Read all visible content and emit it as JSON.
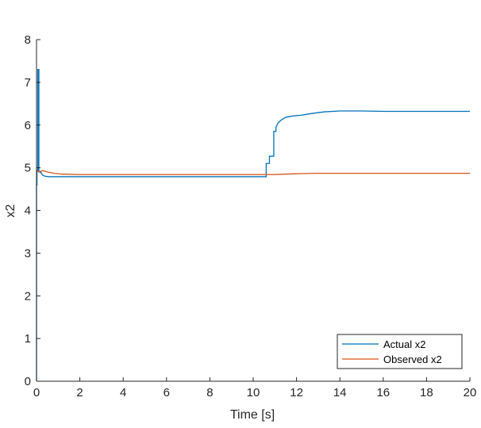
{
  "chart_data": {
    "type": "line",
    "title": "",
    "xlabel": "Time [s]",
    "ylabel": "x2",
    "xlim": [
      0,
      20
    ],
    "ylim": [
      0,
      8
    ],
    "xticks": [
      0,
      2,
      4,
      6,
      8,
      10,
      12,
      14,
      16,
      18,
      20
    ],
    "yticks": [
      0,
      1,
      2,
      3,
      4,
      5,
      6,
      7,
      8
    ],
    "grid": false,
    "legend_position": "bottom-right",
    "series": [
      {
        "name": "Actual x2",
        "color": "#0072BD",
        "x": [
          0,
          0,
          0.02,
          0.02,
          0.04,
          0.06,
          0.06,
          0.11,
          0.11,
          0.18,
          0.2,
          0.2,
          0.25,
          0.3,
          0.4,
          0.6,
          1.0,
          2.0,
          4.0,
          6.0,
          8.0,
          10.0,
          10.6,
          10.6,
          10.75,
          10.75,
          10.95,
          10.95,
          11.05,
          11.05,
          11.15,
          11.3,
          11.5,
          11.8,
          12.2,
          12.7,
          13.3,
          14.0,
          15.0,
          16.0,
          18.0,
          20.0
        ],
        "y": [
          0,
          4.6,
          4.6,
          4.95,
          4.95,
          4.95,
          7.3,
          7.3,
          4.9,
          4.9,
          4.9,
          4.88,
          4.85,
          4.82,
          4.8,
          4.79,
          4.79,
          4.79,
          4.79,
          4.79,
          4.79,
          4.79,
          4.79,
          5.1,
          5.1,
          5.27,
          5.27,
          5.85,
          5.85,
          5.95,
          6.05,
          6.12,
          6.18,
          6.21,
          6.23,
          6.27,
          6.31,
          6.33,
          6.33,
          6.32,
          6.32,
          6.32
        ]
      },
      {
        "name": "Observed x2",
        "color": "#D95319",
        "x": [
          0,
          0.05,
          0.1,
          0.2,
          0.3,
          0.5,
          0.8,
          1.2,
          2.0,
          4.0,
          6.0,
          8.0,
          10.0,
          10.6,
          11.0,
          11.5,
          12.0,
          13.0,
          14.0,
          16.0,
          18.0,
          20.0
        ],
        "y": [
          4.93,
          4.93,
          4.9,
          4.92,
          4.93,
          4.9,
          4.87,
          4.85,
          4.84,
          4.84,
          4.84,
          4.84,
          4.84,
          4.84,
          4.84,
          4.85,
          4.86,
          4.87,
          4.87,
          4.87,
          4.87,
          4.87
        ]
      }
    ]
  }
}
